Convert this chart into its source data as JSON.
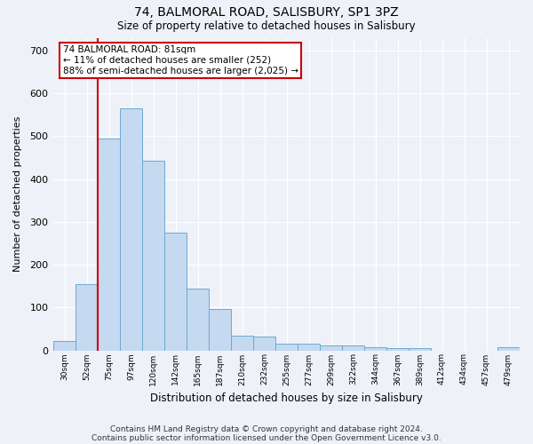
{
  "title_line1": "74, BALMORAL ROAD, SALISBURY, SP1 3PZ",
  "title_line2": "Size of property relative to detached houses in Salisbury",
  "xlabel": "Distribution of detached houses by size in Salisbury",
  "ylabel": "Number of detached properties",
  "bar_labels": [
    "30sqm",
    "52sqm",
    "75sqm",
    "97sqm",
    "120sqm",
    "142sqm",
    "165sqm",
    "187sqm",
    "210sqm",
    "232sqm",
    "255sqm",
    "277sqm",
    "299sqm",
    "322sqm",
    "344sqm",
    "367sqm",
    "389sqm",
    "412sqm",
    "434sqm",
    "457sqm",
    "479sqm"
  ],
  "bar_values": [
    22,
    155,
    495,
    565,
    443,
    275,
    144,
    97,
    35,
    32,
    15,
    16,
    12,
    12,
    7,
    5,
    5,
    0,
    0,
    0,
    7
  ],
  "bar_color": "#c5d9f0",
  "bar_edge_color": "#6aaad4",
  "vline_color": "#cc0000",
  "annotation_text": "74 BALMORAL ROAD: 81sqm\n← 11% of detached houses are smaller (252)\n88% of semi-detached houses are larger (2,025) →",
  "ylim": [
    0,
    730
  ],
  "yticks": [
    0,
    100,
    200,
    300,
    400,
    500,
    600,
    700
  ],
  "footer_line1": "Contains HM Land Registry data © Crown copyright and database right 2024.",
  "footer_line2": "Contains public sector information licensed under the Open Government Licence v3.0.",
  "bg_color": "#eef2f8",
  "plot_bg_color": "#eef2f8",
  "grid_color": "#ffffff"
}
